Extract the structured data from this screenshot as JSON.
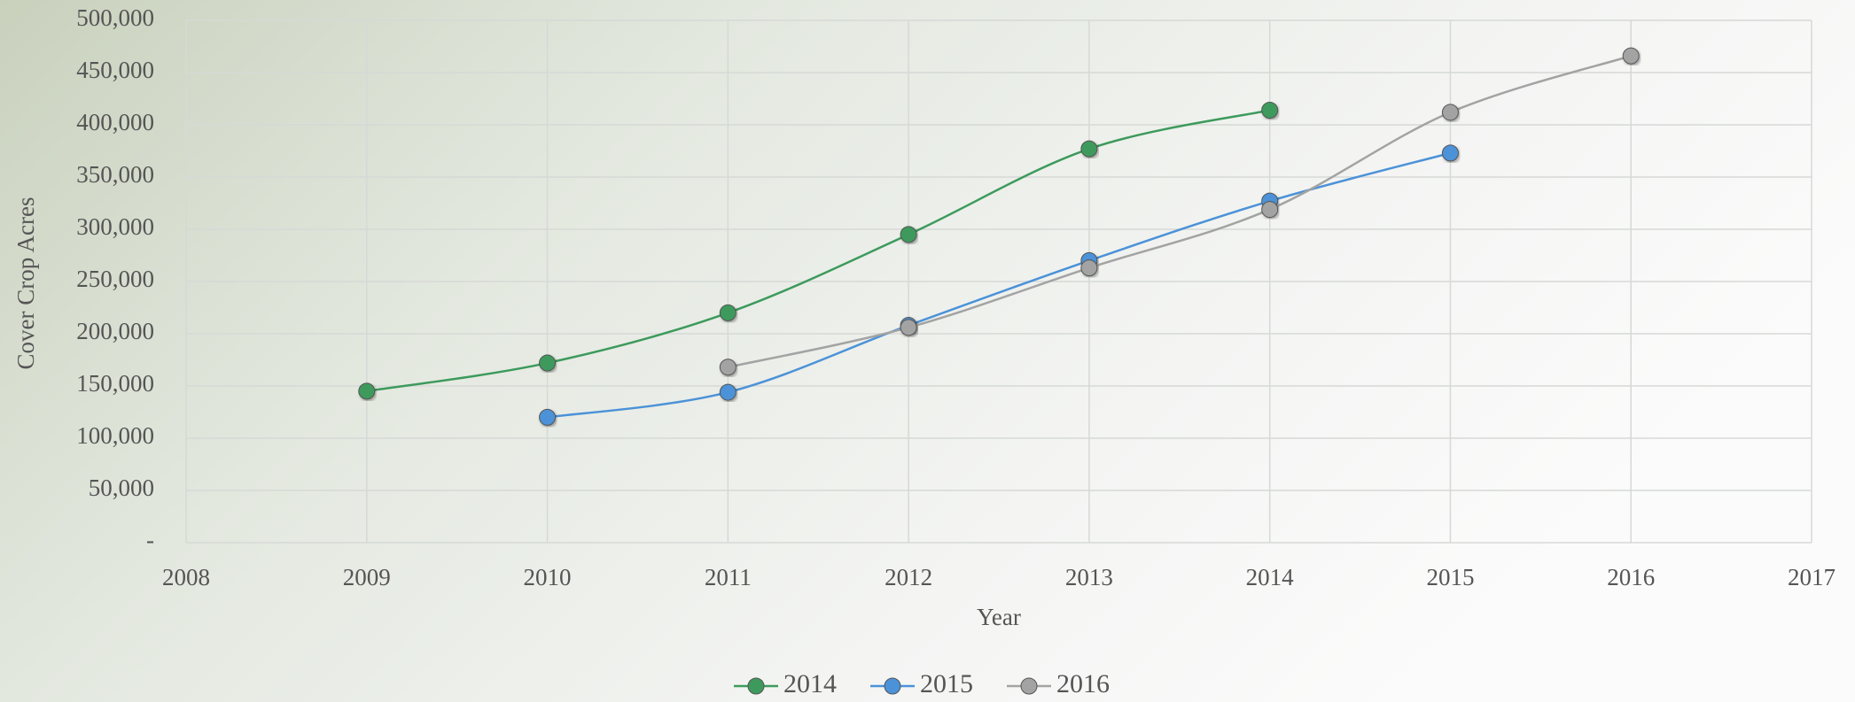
{
  "chart_data": {
    "type": "line",
    "x_label": "Year",
    "y_label": "Cover Crop Acres",
    "x": [
      2009,
      2010,
      2011,
      2012,
      2013,
      2014,
      2015,
      2016
    ],
    "series": [
      {
        "name": "2014",
        "color": "#3d9a5c",
        "values": [
          145000,
          172000,
          220000,
          295000,
          377000,
          414000,
          null,
          null
        ]
      },
      {
        "name": "2015",
        "color": "#4b92d8",
        "values": [
          null,
          120000,
          144000,
          208000,
          270000,
          327000,
          373000,
          null
        ]
      },
      {
        "name": "2016",
        "color": "#a3a3a3",
        "values": [
          null,
          null,
          168000,
          206000,
          263000,
          319000,
          412000,
          466000
        ]
      }
    ],
    "xlim": [
      2008,
      2017
    ],
    "xticks": [
      2008,
      2009,
      2010,
      2011,
      2012,
      2013,
      2014,
      2015,
      2016,
      2017
    ],
    "ylim": [
      0,
      500000
    ],
    "yticks": [
      {
        "value": 0,
        "label": "-"
      },
      {
        "value": 50000,
        "label": "50,000"
      },
      {
        "value": 100000,
        "label": "100,000"
      },
      {
        "value": 150000,
        "label": "150,000"
      },
      {
        "value": 200000,
        "label": "200,000"
      },
      {
        "value": 250000,
        "label": "250,000"
      },
      {
        "value": 300000,
        "label": "300,000"
      },
      {
        "value": 350000,
        "label": "350,000"
      },
      {
        "value": 400000,
        "label": "400,000"
      },
      {
        "value": 450000,
        "label": "450,000"
      },
      {
        "value": 500000,
        "label": "500,000"
      }
    ],
    "grid": true,
    "smooth": true,
    "legend": "bottom"
  }
}
